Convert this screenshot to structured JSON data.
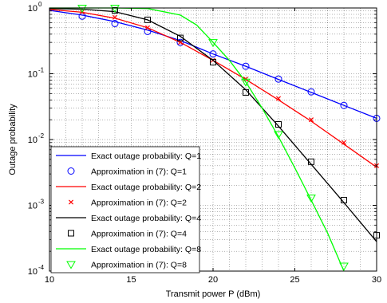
{
  "chart_data": {
    "type": "line",
    "title": "",
    "xlabel": "Transmit power P (dBm)",
    "ylabel": "Outage probability",
    "xlim": [
      10,
      30
    ],
    "ylim": [
      0.0001,
      1
    ],
    "yscale": "log",
    "grid": true,
    "legend_position": "bottom-left",
    "x_ticks": [
      10,
      15,
      20,
      25,
      30
    ],
    "x_tick_labels": [
      "10",
      "15",
      "20",
      "25",
      "30"
    ],
    "y_ticks": [
      1,
      0.1,
      0.01,
      0.001,
      0.0001
    ],
    "y_tick_bases": [
      "10",
      "10",
      "10",
      "10",
      "10"
    ],
    "y_tick_exponents": [
      "0",
      "-1",
      "-2",
      "-3",
      "-4"
    ],
    "series": [
      {
        "name": "Exact outage probability: Q=1",
        "kind": "line",
        "color": "#0000ff",
        "x": [
          10,
          12,
          14,
          16,
          18,
          20,
          22,
          24,
          26,
          28,
          30
        ],
        "y": [
          0.92,
          0.78,
          0.62,
          0.46,
          0.32,
          0.2,
          0.13,
          0.082,
          0.052,
          0.033,
          0.021
        ]
      },
      {
        "name": "Approximation in (7):    Q=1",
        "kind": "marker",
        "marker": "circle",
        "color": "#0000ff",
        "x": [
          12,
          14,
          16,
          18,
          20,
          22,
          24,
          26,
          28,
          30
        ],
        "y": [
          0.75,
          0.58,
          0.44,
          0.3,
          0.2,
          0.13,
          0.083,
          0.053,
          0.033,
          0.021
        ]
      },
      {
        "name": "Exact outage probability: Q=2",
        "kind": "line",
        "color": "#ff0000",
        "x": [
          10,
          12,
          14,
          16,
          18,
          20,
          22,
          24,
          26,
          28,
          30
        ],
        "y": [
          0.95,
          0.86,
          0.7,
          0.5,
          0.3,
          0.16,
          0.082,
          0.04,
          0.019,
          0.0085,
          0.0038
        ]
      },
      {
        "name": "Approximation in (7):    Q=2",
        "kind": "marker",
        "marker": "x",
        "color": "#ff0000",
        "x": [
          12,
          14,
          16,
          18,
          20,
          22,
          24,
          26,
          28,
          30
        ],
        "y": [
          0.87,
          0.72,
          0.5,
          0.3,
          0.16,
          0.083,
          0.042,
          0.02,
          0.009,
          0.004
        ]
      },
      {
        "name": "Exact outage probability: Q=4",
        "kind": "line",
        "color": "#000000",
        "x": [
          10,
          12,
          14,
          16,
          18,
          20,
          22,
          24,
          26,
          28,
          30
        ],
        "y": [
          0.98,
          0.96,
          0.88,
          0.66,
          0.37,
          0.16,
          0.057,
          0.016,
          0.0042,
          0.0011,
          0.00028
        ]
      },
      {
        "name": "Approximation in (7):    Q=4",
        "kind": "marker",
        "marker": "square",
        "color": "#000000",
        "x": [
          14,
          16,
          18,
          20,
          22,
          24,
          26,
          28,
          30
        ],
        "y": [
          0.92,
          0.66,
          0.35,
          0.15,
          0.052,
          0.017,
          0.0046,
          0.0012,
          0.00035
        ]
      },
      {
        "name": "Exact outage probability: Q=8",
        "kind": "line",
        "color": "#00ff00",
        "x": [
          10,
          12,
          14,
          16,
          18,
          19,
          20,
          21,
          22,
          23,
          24,
          25,
          26,
          27,
          28
        ],
        "y": [
          1,
          1,
          1,
          0.98,
          0.78,
          0.55,
          0.3,
          0.16,
          0.075,
          0.03,
          0.011,
          0.0037,
          0.0012,
          0.00038,
          0.0001
        ]
      },
      {
        "name": "Approximation in (7):    Q=8",
        "kind": "marker",
        "marker": "triangle",
        "color": "#00ff00",
        "x": [
          12,
          14,
          20,
          22,
          24,
          26,
          28
        ],
        "y": [
          1,
          1,
          0.3,
          0.075,
          0.012,
          0.0013,
          0.00012
        ]
      }
    ]
  }
}
